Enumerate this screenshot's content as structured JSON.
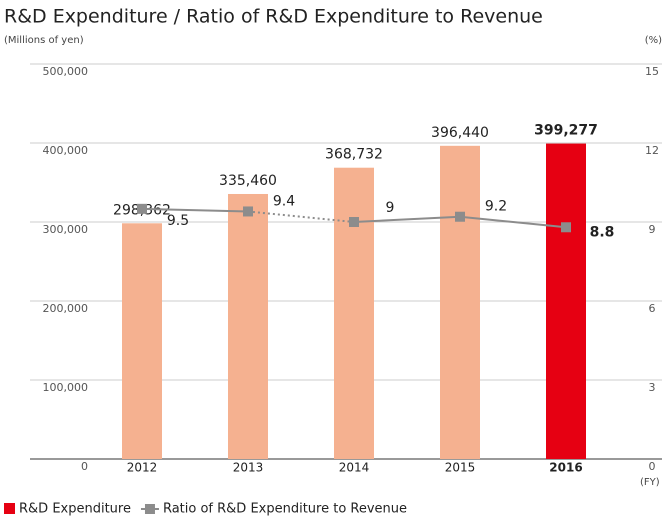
{
  "chart_data": {
    "type": "bar",
    "title": "R&D Expenditure / Ratio of R&D Expenditure to Revenue",
    "y_label": "(Millions of yen)",
    "y2_label": "(%)",
    "x_label": "(FY)",
    "categories": [
      "2012",
      "2013",
      "2014",
      "2015",
      "2016"
    ],
    "highlight": "2016",
    "series": [
      {
        "name": "R&D Expenditure",
        "type": "bar",
        "color": "#f5b190",
        "colors": [
          "#f5b190",
          "#f5b190",
          "#f5b190",
          "#f5b190",
          "#e60012"
        ],
        "values": [
          298362,
          335460,
          368732,
          396440,
          399277
        ],
        "value_labels": [
          "298,362",
          "335,460",
          "368,732",
          "396,440",
          "399,277"
        ]
      },
      {
        "name": "Ratio of R&D Expenditure to Revenue",
        "type": "line",
        "axis": "y2",
        "color": "#8c8c8c",
        "values": [
          9.5,
          9.4,
          9.0,
          9.2,
          8.8
        ]
      }
    ],
    "dashed_segment": [
      "2013",
      "2014"
    ],
    "ylim": [
      0,
      500000
    ],
    "yticks": [
      0,
      {
        "value": 100000,
        "label": "100,000"
      },
      {
        "value": 200000,
        "label": "200,000"
      },
      {
        "value": 300000,
        "label": "300,000"
      },
      {
        "value": 400000,
        "label": "400,000"
      },
      {
        "value": 500000,
        "label": "500,000"
      }
    ],
    "y2lim": [
      0,
      15
    ],
    "y2ticks": [
      0,
      3,
      6,
      9,
      12,
      15
    ],
    "grid": true
  }
}
